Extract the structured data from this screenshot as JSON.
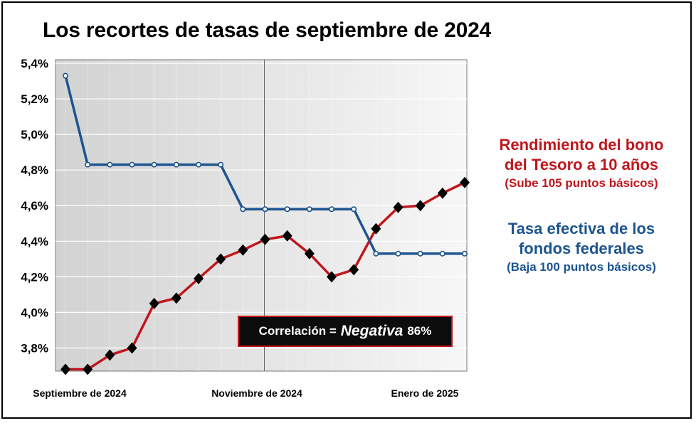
{
  "chart_data": {
    "type": "line",
    "title": "Los recortes de tasas de septiembre de 2024",
    "xlabel": "",
    "ylabel": "",
    "ylim": [
      3.67,
      5.42
    ],
    "y_ticks": [
      "3,8%",
      "4,0%",
      "4,2%",
      "4,4%",
      "4,6%",
      "4,8%",
      "5,0%",
      "5,2%",
      "5,4%"
    ],
    "y_tick_values": [
      3.8,
      4.0,
      4.2,
      4.4,
      4.6,
      4.8,
      5.0,
      5.2,
      5.4
    ],
    "x_labels": [
      "Septiembre de 2024",
      "Noviembre de 2024",
      "Enero de 2025"
    ],
    "grid": true,
    "series": [
      {
        "name": "Rendimiento del bono del Tesoro a 10 años",
        "color": "#c0161c",
        "marker": "diamond",
        "values": [
          3.68,
          3.68,
          3.76,
          3.8,
          4.05,
          4.08,
          4.19,
          4.3,
          4.35,
          4.41,
          4.43,
          4.33,
          4.2,
          4.24,
          4.47,
          4.59,
          4.6,
          4.67,
          4.73
        ]
      },
      {
        "name": "Tasa efectiva de los fondos federales",
        "color": "#1c548f",
        "marker": "circle",
        "values": [
          5.33,
          4.83,
          4.83,
          4.83,
          4.83,
          4.83,
          4.83,
          4.83,
          4.58,
          4.58,
          4.58,
          4.58,
          4.58,
          4.58,
          4.33,
          4.33,
          4.33,
          4.33,
          4.33
        ]
      }
    ]
  },
  "legend": {
    "red_line1": "Rendimiento del bono",
    "red_line2": "del Tesoro a 10 años",
    "red_sub": "(Sube 105 puntos básicos)",
    "blue_line1": "Tasa efectiva de los",
    "blue_line2": "fondos federales",
    "blue_sub": "(Baja 100 puntos básicos)"
  },
  "correlation": {
    "prefix": "Correlación =",
    "emphasis": "Negativa",
    "value": "86%"
  }
}
